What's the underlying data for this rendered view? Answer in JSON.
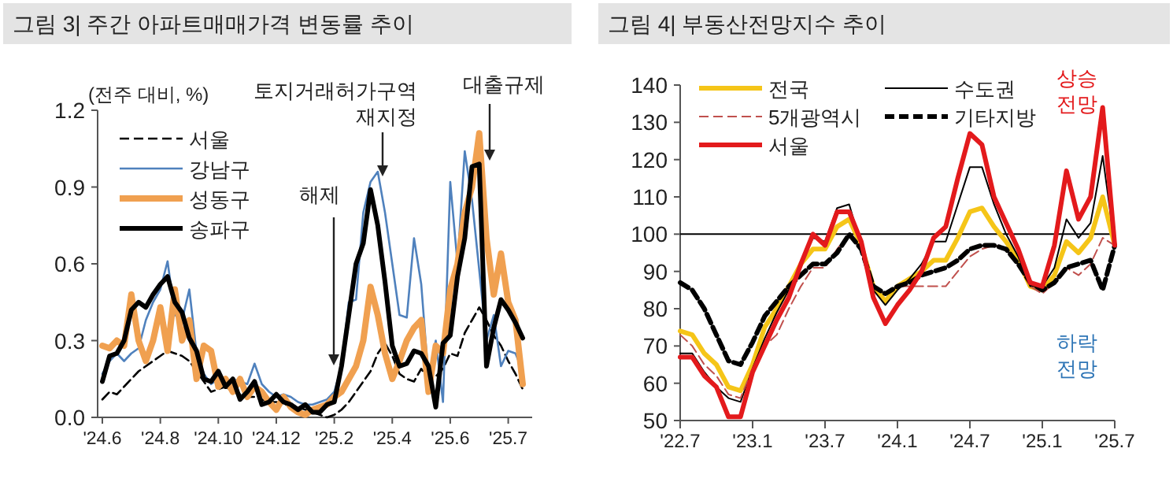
{
  "chart_data": [
    {
      "type": "line",
      "title": "그림 3| 주간 아파트매매가격 변동률 추이",
      "ylabel": "(전주 대비, %)",
      "categories": [
        "'24.6",
        null,
        null,
        null,
        null,
        null,
        null,
        null,
        "'24.8",
        null,
        null,
        null,
        null,
        null,
        null,
        null,
        "'24.10",
        null,
        null,
        null,
        null,
        null,
        null,
        null,
        "'24.12",
        null,
        null,
        null,
        null,
        null,
        null,
        null,
        "'25.2",
        null,
        null,
        null,
        null,
        null,
        null,
        null,
        "'25.4",
        null,
        null,
        null,
        null,
        null,
        null,
        null,
        "'25.6",
        null,
        null,
        null,
        null,
        null,
        null,
        null,
        "'25.7",
        null,
        null
      ],
      "ylim": [
        0,
        1.2
      ],
      "yticks": [
        {
          "value": 0,
          "label": "0.0"
        },
        0.3,
        0.6,
        0.9,
        1.2
      ],
      "legend": "top left",
      "series": [
        {
          "name": "서울",
          "color": "#000000",
          "line_style": "dashed",
          "values": [
            0.07,
            0.1,
            0.09,
            0.12,
            0.15,
            0.18,
            0.2,
            0.22,
            0.24,
            0.26,
            0.25,
            0.24,
            0.22,
            0.18,
            0.14,
            0.1,
            0.11,
            0.12,
            0.1,
            0.09,
            0.08,
            0.08,
            0.07,
            0.06,
            0.06,
            0.05,
            0.05,
            0.04,
            0.03,
            0.02,
            0.01,
            0.0,
            0.01,
            0.03,
            0.06,
            0.1,
            0.14,
            0.18,
            0.25,
            0.29,
            0.24,
            0.17,
            0.15,
            0.14,
            0.19,
            0.15,
            0.16,
            0.19,
            0.25,
            0.24,
            0.33,
            0.38,
            0.43,
            0.38,
            0.32,
            0.28,
            0.22,
            0.17,
            0.11
          ]
        },
        {
          "name": "강남구",
          "color": "#4f81bd",
          "values": [
            0.17,
            0.22,
            0.25,
            0.22,
            0.25,
            0.27,
            0.38,
            0.45,
            0.5,
            0.61,
            0.4,
            0.38,
            0.5,
            0.25,
            0.17,
            0.13,
            0.15,
            0.12,
            0.15,
            0.14,
            0.13,
            0.21,
            0.13,
            0.1,
            0.08,
            0.09,
            0.08,
            0.06,
            0.05,
            0.05,
            0.06,
            0.07,
            0.1,
            0.2,
            0.45,
            0.46,
            0.8,
            0.92,
            0.96,
            0.8,
            0.6,
            0.4,
            0.39,
            0.7,
            0.52,
            0.15,
            0.3,
            0.06,
            0.92,
            0.6,
            1.04,
            0.85,
            null,
            0.3,
            0.4,
            0.2,
            0.26,
            0.25,
            0.18
          ]
        },
        {
          "name": "성동구",
          "color": "#f0a050",
          "values": [
            0.28,
            0.27,
            0.3,
            0.28,
            0.48,
            0.3,
            0.22,
            0.3,
            0.43,
            0.26,
            0.5,
            0.3,
            0.38,
            0.15,
            0.28,
            0.26,
            0.12,
            0.15,
            0.1,
            0.15,
            0.08,
            0.12,
            0.1,
            0.06,
            0.03,
            0.08,
            0.04,
            0.02,
            0.01,
            0.03,
            0.04,
            0.05,
            0.08,
            0.1,
            0.15,
            0.2,
            0.3,
            0.51,
            0.4,
            0.25,
            0.15,
            0.22,
            0.3,
            0.35,
            0.38,
            0.1,
            0.28,
            0.25,
            0.5,
            0.6,
            0.8,
            0.9,
            1.11,
            0.7,
            0.48,
            0.64,
            0.45,
            0.38,
            0.13
          ]
        },
        {
          "name": "송파구",
          "color": "#000000",
          "values": [
            0.14,
            0.24,
            0.25,
            0.3,
            0.42,
            0.45,
            0.43,
            0.48,
            0.52,
            0.55,
            0.45,
            0.41,
            0.31,
            0.26,
            0.15,
            0.14,
            0.18,
            0.12,
            0.15,
            0.07,
            0.1,
            0.14,
            0.05,
            0.06,
            0.09,
            0.06,
            0.05,
            0.03,
            0.05,
            0.02,
            0.02,
            0.05,
            0.06,
            0.2,
            0.4,
            0.6,
            0.68,
            0.89,
            0.75,
            0.53,
            0.28,
            0.2,
            0.21,
            0.26,
            0.25,
            0.2,
            0.04,
            0.29,
            0.32,
            0.55,
            0.7,
            0.98,
            0.99,
            0.2,
            0.35,
            0.46,
            0.42,
            0.37,
            0.31
          ]
        }
      ],
      "annotations": [
        "토지거래허가구역\n재지정",
        "해제",
        "대출규제"
      ]
    },
    {
      "type": "line",
      "title": "그림 4| 부동산전망지수 추이",
      "x": [
        "2022-07",
        "2022-08",
        "2022-09",
        "2022-10",
        "2022-11",
        "2022-12",
        "2023-01",
        "2023-02",
        "2023-03",
        "2023-04",
        "2023-05",
        "2023-06",
        "2023-07",
        "2023-08",
        "2023-09",
        "2023-10",
        "2023-11",
        "2023-12",
        "2024-01",
        "2024-02",
        "2024-03",
        "2024-04",
        "2024-05",
        "2024-06",
        "2024-07",
        "2024-08",
        "2024-09",
        "2024-10",
        "2024-11",
        "2024-12",
        "2025-01",
        "2025-02",
        "2025-03",
        "2025-04",
        "2025-05",
        "2025-06",
        "2025-07"
      ],
      "xlim": [
        "2022-07",
        "2025-07"
      ],
      "xticks": [
        {
          "value": "2022-07",
          "label": "'22.7"
        },
        {
          "value": "2023-01",
          "label": "'23.1"
        },
        {
          "value": "2023-07",
          "label": "'23.7"
        },
        {
          "value": "2024-01",
          "label": "'24.1"
        },
        {
          "value": "2024-07",
          "label": "'24.7"
        },
        {
          "value": "2025-01",
          "label": "'25.1"
        },
        {
          "value": "2025-07",
          "label": "'25.7"
        }
      ],
      "ylim": [
        50,
        140
      ],
      "yticks": [
        50,
        60,
        70,
        80,
        90,
        100,
        110,
        120,
        130,
        140
      ],
      "legend": "top",
      "ref_lines": [
        {
          "axis": "y",
          "value": 100,
          "color": "#000000"
        }
      ],
      "series": [
        {
          "name": "전국",
          "color": "#f5c518",
          "values": [
            74,
            73,
            68,
            65,
            59,
            58,
            65,
            75,
            80,
            86,
            92,
            96,
            96,
            102,
            104,
            97,
            86,
            82,
            86,
            88,
            90,
            93,
            93,
            99,
            106,
            107,
            102,
            98,
            93,
            86,
            85,
            89,
            98,
            95,
            99,
            110,
            97
          ]
        },
        {
          "name": "수도권",
          "color": "#000000",
          "values": [
            68,
            68,
            63,
            59,
            56,
            55,
            64,
            72,
            79,
            85,
            92,
            99,
            98,
            107,
            108,
            97,
            85,
            81,
            85,
            88,
            92,
            98,
            98,
            108,
            118,
            118,
            108,
            100,
            94,
            86,
            86,
            91,
            104,
            99,
            103,
            121,
            97
          ]
        },
        {
          "name": "5개광역시",
          "color": "#c0504d",
          "line_style": "dashed",
          "values": [
            73,
            70,
            65,
            62,
            57,
            56,
            64,
            70,
            73,
            80,
            86,
            91,
            91,
            96,
            100,
            96,
            86,
            84,
            86,
            86,
            86,
            86,
            86,
            90,
            94,
            96,
            97,
            96,
            92,
            86,
            84,
            87,
            91,
            89,
            92,
            99,
            97
          ]
        },
        {
          "name": "기타지방",
          "color": "#000000",
          "line_style": "dashed",
          "values": [
            87,
            85,
            80,
            73,
            66,
            65,
            71,
            78,
            82,
            86,
            89,
            92,
            92,
            95,
            100,
            96,
            86,
            84,
            86,
            87,
            89,
            90,
            91,
            93,
            96,
            97,
            97,
            96,
            92,
            87,
            85,
            87,
            91,
            92,
            93,
            85,
            97
          ]
        },
        {
          "name": "서울",
          "color": "#e31a1c",
          "values": [
            67,
            67,
            62,
            59,
            51,
            51,
            63,
            70,
            77,
            83,
            92,
            100,
            97,
            106,
            106,
            98,
            83,
            76,
            81,
            85,
            90,
            99,
            102,
            115,
            127,
            124,
            110,
            103,
            96,
            87,
            86,
            97,
            117,
            104,
            110,
            134,
            97
          ]
        }
      ],
      "annotations": [
        "상승\n전망",
        "하락\n전망"
      ]
    }
  ]
}
